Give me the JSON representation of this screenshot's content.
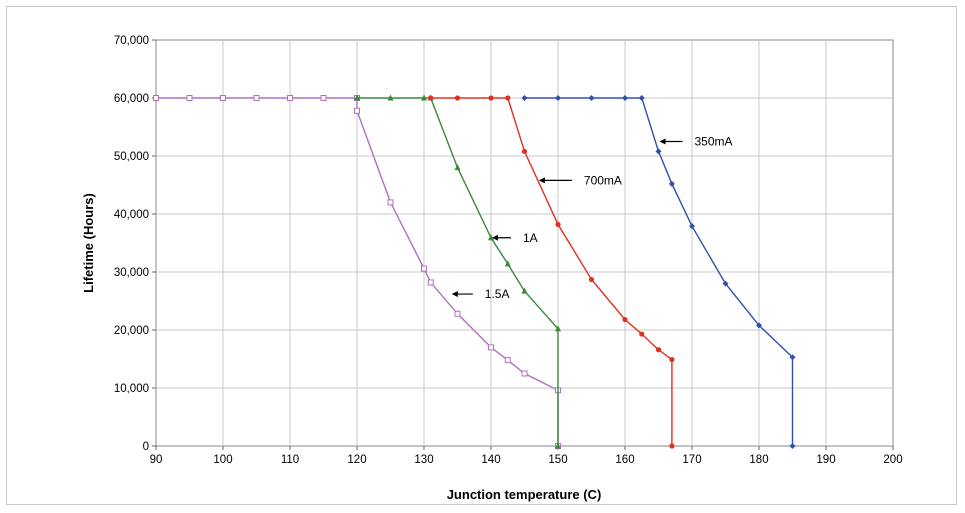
{
  "chart_data": {
    "type": "line",
    "title": "",
    "xlabel": "Junction temperature (C)",
    "ylabel": "Lifetime (Hours)",
    "xlim": [
      90,
      200
    ],
    "ylim": [
      0,
      70000
    ],
    "x_ticks": [
      "90",
      "100",
      "110",
      "120",
      "130",
      "140",
      "150",
      "160",
      "170",
      "180",
      "190",
      "200"
    ],
    "y_ticks": [
      "0",
      "10,000",
      "20,000",
      "30,000",
      "40,000",
      "50,000",
      "60,000",
      "70,000"
    ],
    "grid": true,
    "legend": "none",
    "series": [
      {
        "name": "1.5A",
        "color": "#b070c0",
        "marker": "open-square",
        "points": [
          [
            90,
            60000
          ],
          [
            95,
            60000
          ],
          [
            100,
            60000
          ],
          [
            105,
            60000
          ],
          [
            110,
            60000
          ],
          [
            115,
            60000
          ],
          [
            120,
            60000
          ],
          [
            120,
            57800
          ],
          [
            125,
            42000
          ],
          [
            130,
            30600
          ],
          [
            131,
            28200
          ],
          [
            135,
            22800
          ],
          [
            140,
            17000
          ],
          [
            142.5,
            14800
          ],
          [
            145,
            12500
          ],
          [
            150,
            9600
          ],
          [
            150,
            0
          ]
        ]
      },
      {
        "name": "1A",
        "color": "#3a8a3a",
        "marker": "triangle",
        "points": [
          [
            120,
            60000
          ],
          [
            125,
            60000
          ],
          [
            130,
            60000
          ],
          [
            131,
            60000
          ],
          [
            135,
            48000
          ],
          [
            140,
            35900
          ],
          [
            142.5,
            31400
          ],
          [
            145,
            26700
          ],
          [
            150,
            20200
          ],
          [
            150,
            0
          ]
        ]
      },
      {
        "name": "700mA",
        "color": "#e03020",
        "marker": "circle",
        "points": [
          [
            131,
            60000
          ],
          [
            135,
            60000
          ],
          [
            140,
            60000
          ],
          [
            142.5,
            60000
          ],
          [
            145,
            50800
          ],
          [
            150,
            38200
          ],
          [
            155,
            28700
          ],
          [
            160,
            21800
          ],
          [
            162.5,
            19300
          ],
          [
            165,
            16600
          ],
          [
            167,
            14900
          ],
          [
            167,
            0
          ]
        ]
      },
      {
        "name": "350mA",
        "color": "#3050b0",
        "marker": "diamond",
        "points": [
          [
            145,
            60000
          ],
          [
            150,
            60000
          ],
          [
            155,
            60000
          ],
          [
            160,
            60000
          ],
          [
            162.5,
            60000
          ],
          [
            165,
            50800
          ],
          [
            167,
            45200
          ],
          [
            170,
            37900
          ],
          [
            175,
            28000
          ],
          [
            180,
            20800
          ],
          [
            185,
            15300
          ],
          [
            185,
            0
          ]
        ]
      }
    ],
    "annotations": [
      {
        "text": "350mA",
        "series": "350mA",
        "point": [
          165,
          52500
        ]
      },
      {
        "text": "700mA",
        "series": "700mA",
        "point": [
          147,
          45800
        ]
      },
      {
        "text": "1A",
        "series": "1A",
        "point": [
          140,
          35900
        ]
      },
      {
        "text": "1.5A",
        "series": "1.5A",
        "point": [
          134,
          26200
        ]
      }
    ]
  }
}
